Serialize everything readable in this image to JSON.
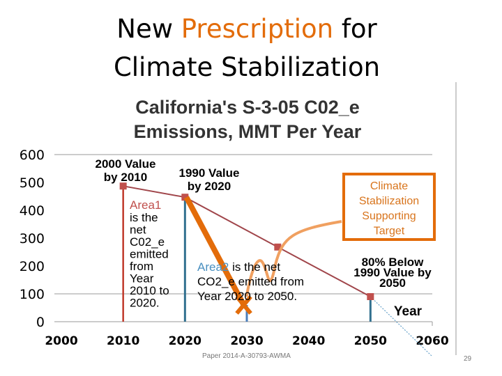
{
  "slide": {
    "title_part1": "New ",
    "title_highlight": "Prescription",
    "title_part2": " for",
    "title_line2": "Climate Stabilization",
    "footer": "Paper 2014-A-30793-AWMA",
    "page_number": "29",
    "accent_color": "#e36c0a"
  },
  "chart_data": {
    "type": "line",
    "title": "California's S-3-05 C02_e Emissions, MMT Per Year",
    "xlabel": "Year",
    "ylabel": "",
    "xlim": [
      2000,
      2060
    ],
    "ylim": [
      0,
      600
    ],
    "x_ticks": [
      "2000",
      "2010",
      "2020",
      "2030",
      "2040",
      "2050",
      "2060"
    ],
    "y_ticks": [
      "0",
      "100",
      "200",
      "300",
      "400",
      "500",
      "600"
    ],
    "grid": "horizontal at 0, 100, 600",
    "series": [
      {
        "color": "#a0454a",
        "points": [
          [
            2010,
            487
          ],
          [
            2020,
            447
          ],
          [
            2035,
            268
          ],
          [
            2050,
            90
          ]
        ]
      }
    ],
    "annotations": {
      "p2010": "2000 Value by 2010",
      "p2020": "1990 Value by 2020",
      "p2050": "80% Below 1990 Value by 2050",
      "area1_label": "Area1",
      "area1_text": [
        "is the",
        "net",
        "C02_e",
        "emitted",
        "from",
        "Year",
        "2010 to",
        "2020."
      ],
      "area2_label": "Area2",
      "area2_text": [
        " is the net",
        "CO2_e emitted from",
        "Year 2020 to 2050."
      ],
      "callout": [
        "Climate",
        "Stabilization",
        "Supporting",
        "Target"
      ],
      "x_axis_label": "Year"
    },
    "target_arrow": {
      "from": [
        2020,
        447
      ],
      "to": [
        2029.5,
        60
      ],
      "color": "#e36c0a"
    }
  }
}
